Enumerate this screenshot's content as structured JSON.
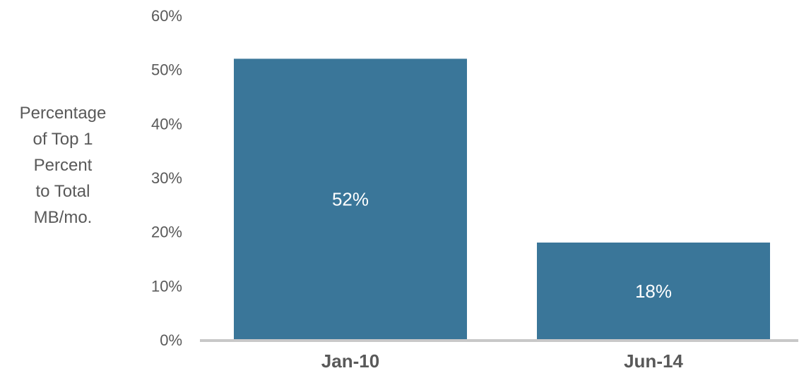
{
  "chart_data": {
    "type": "bar",
    "title": "",
    "xlabel": "",
    "ylabel": "Percentage of Top 1 Percent to Total MB/mo.",
    "ylabel_lines": [
      "Percentage",
      "of Top 1",
      "Percent",
      "to Total",
      "MB/mo."
    ],
    "categories": [
      "Jan-10",
      "Jun-14"
    ],
    "values": [
      52,
      18
    ],
    "data_labels": [
      "52%",
      "18%"
    ],
    "ylim": [
      0,
      60
    ],
    "yticks": [
      0,
      10,
      20,
      30,
      40,
      50,
      60
    ],
    "ytick_labels": [
      "0%",
      "10%",
      "20%",
      "30%",
      "40%",
      "50%",
      "60%"
    ],
    "grid": false,
    "legend": "none",
    "colors": {
      "bar": "#3a7699",
      "axis": "#c8c8c8",
      "text": "#595959",
      "data_label": "#ffffff"
    }
  }
}
